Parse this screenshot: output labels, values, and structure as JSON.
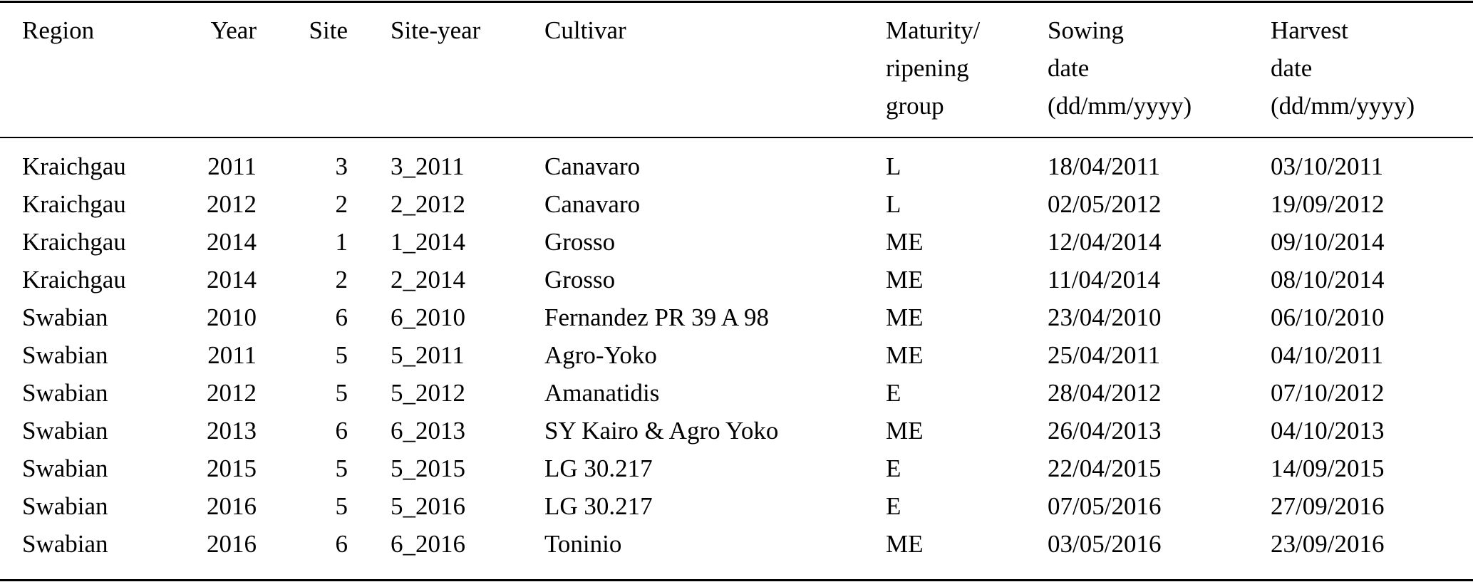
{
  "table": {
    "headers": [
      [
        "Region"
      ],
      [
        "Year"
      ],
      [
        "Site"
      ],
      [
        "Site-year"
      ],
      [
        "Cultivar"
      ],
      [
        "Maturity/",
        "ripening",
        "group"
      ],
      [
        "Sowing",
        "date",
        "(dd/mm/yyyy)"
      ],
      [
        "Harvest",
        "date",
        "(dd/mm/yyyy)"
      ]
    ],
    "rows": [
      [
        "Kraichgau",
        "2011",
        "3",
        "3_2011",
        "Canavaro",
        "L",
        "18/04/2011",
        "03/10/2011"
      ],
      [
        "Kraichgau",
        "2012",
        "2",
        "2_2012",
        "Canavaro",
        "L",
        "02/05/2012",
        "19/09/2012"
      ],
      [
        "Kraichgau",
        "2014",
        "1",
        "1_2014",
        "Grosso",
        "ME",
        "12/04/2014",
        "09/10/2014"
      ],
      [
        "Kraichgau",
        "2014",
        "2",
        "2_2014",
        "Grosso",
        "ME",
        "11/04/2014",
        "08/10/2014"
      ],
      [
        "Swabian",
        "2010",
        "6",
        "6_2010",
        "Fernandez PR 39 A 98",
        "ME",
        "23/04/2010",
        "06/10/2010"
      ],
      [
        "Swabian",
        "2011",
        "5",
        "5_2011",
        "Agro-Yoko",
        "ME",
        "25/04/2011",
        "04/10/2011"
      ],
      [
        "Swabian",
        "2012",
        "5",
        "5_2012",
        "Amanatidis",
        "E",
        "28/04/2012",
        "07/10/2012"
      ],
      [
        "Swabian",
        "2013",
        "6",
        "6_2013",
        "SY Kairo & Agro Yoko",
        "ME",
        "26/04/2013",
        "04/10/2013"
      ],
      [
        "Swabian",
        "2015",
        "5",
        "5_2015",
        "LG 30.217",
        "E",
        "22/04/2015",
        "14/09/2015"
      ],
      [
        "Swabian",
        "2016",
        "5",
        "5_2016",
        "LG 30.217",
        "E",
        "07/05/2016",
        "27/09/2016"
      ],
      [
        "Swabian",
        "2016",
        "6",
        "6_2016",
        "Toninio",
        "ME",
        "03/05/2016",
        "23/09/2016"
      ]
    ]
  }
}
